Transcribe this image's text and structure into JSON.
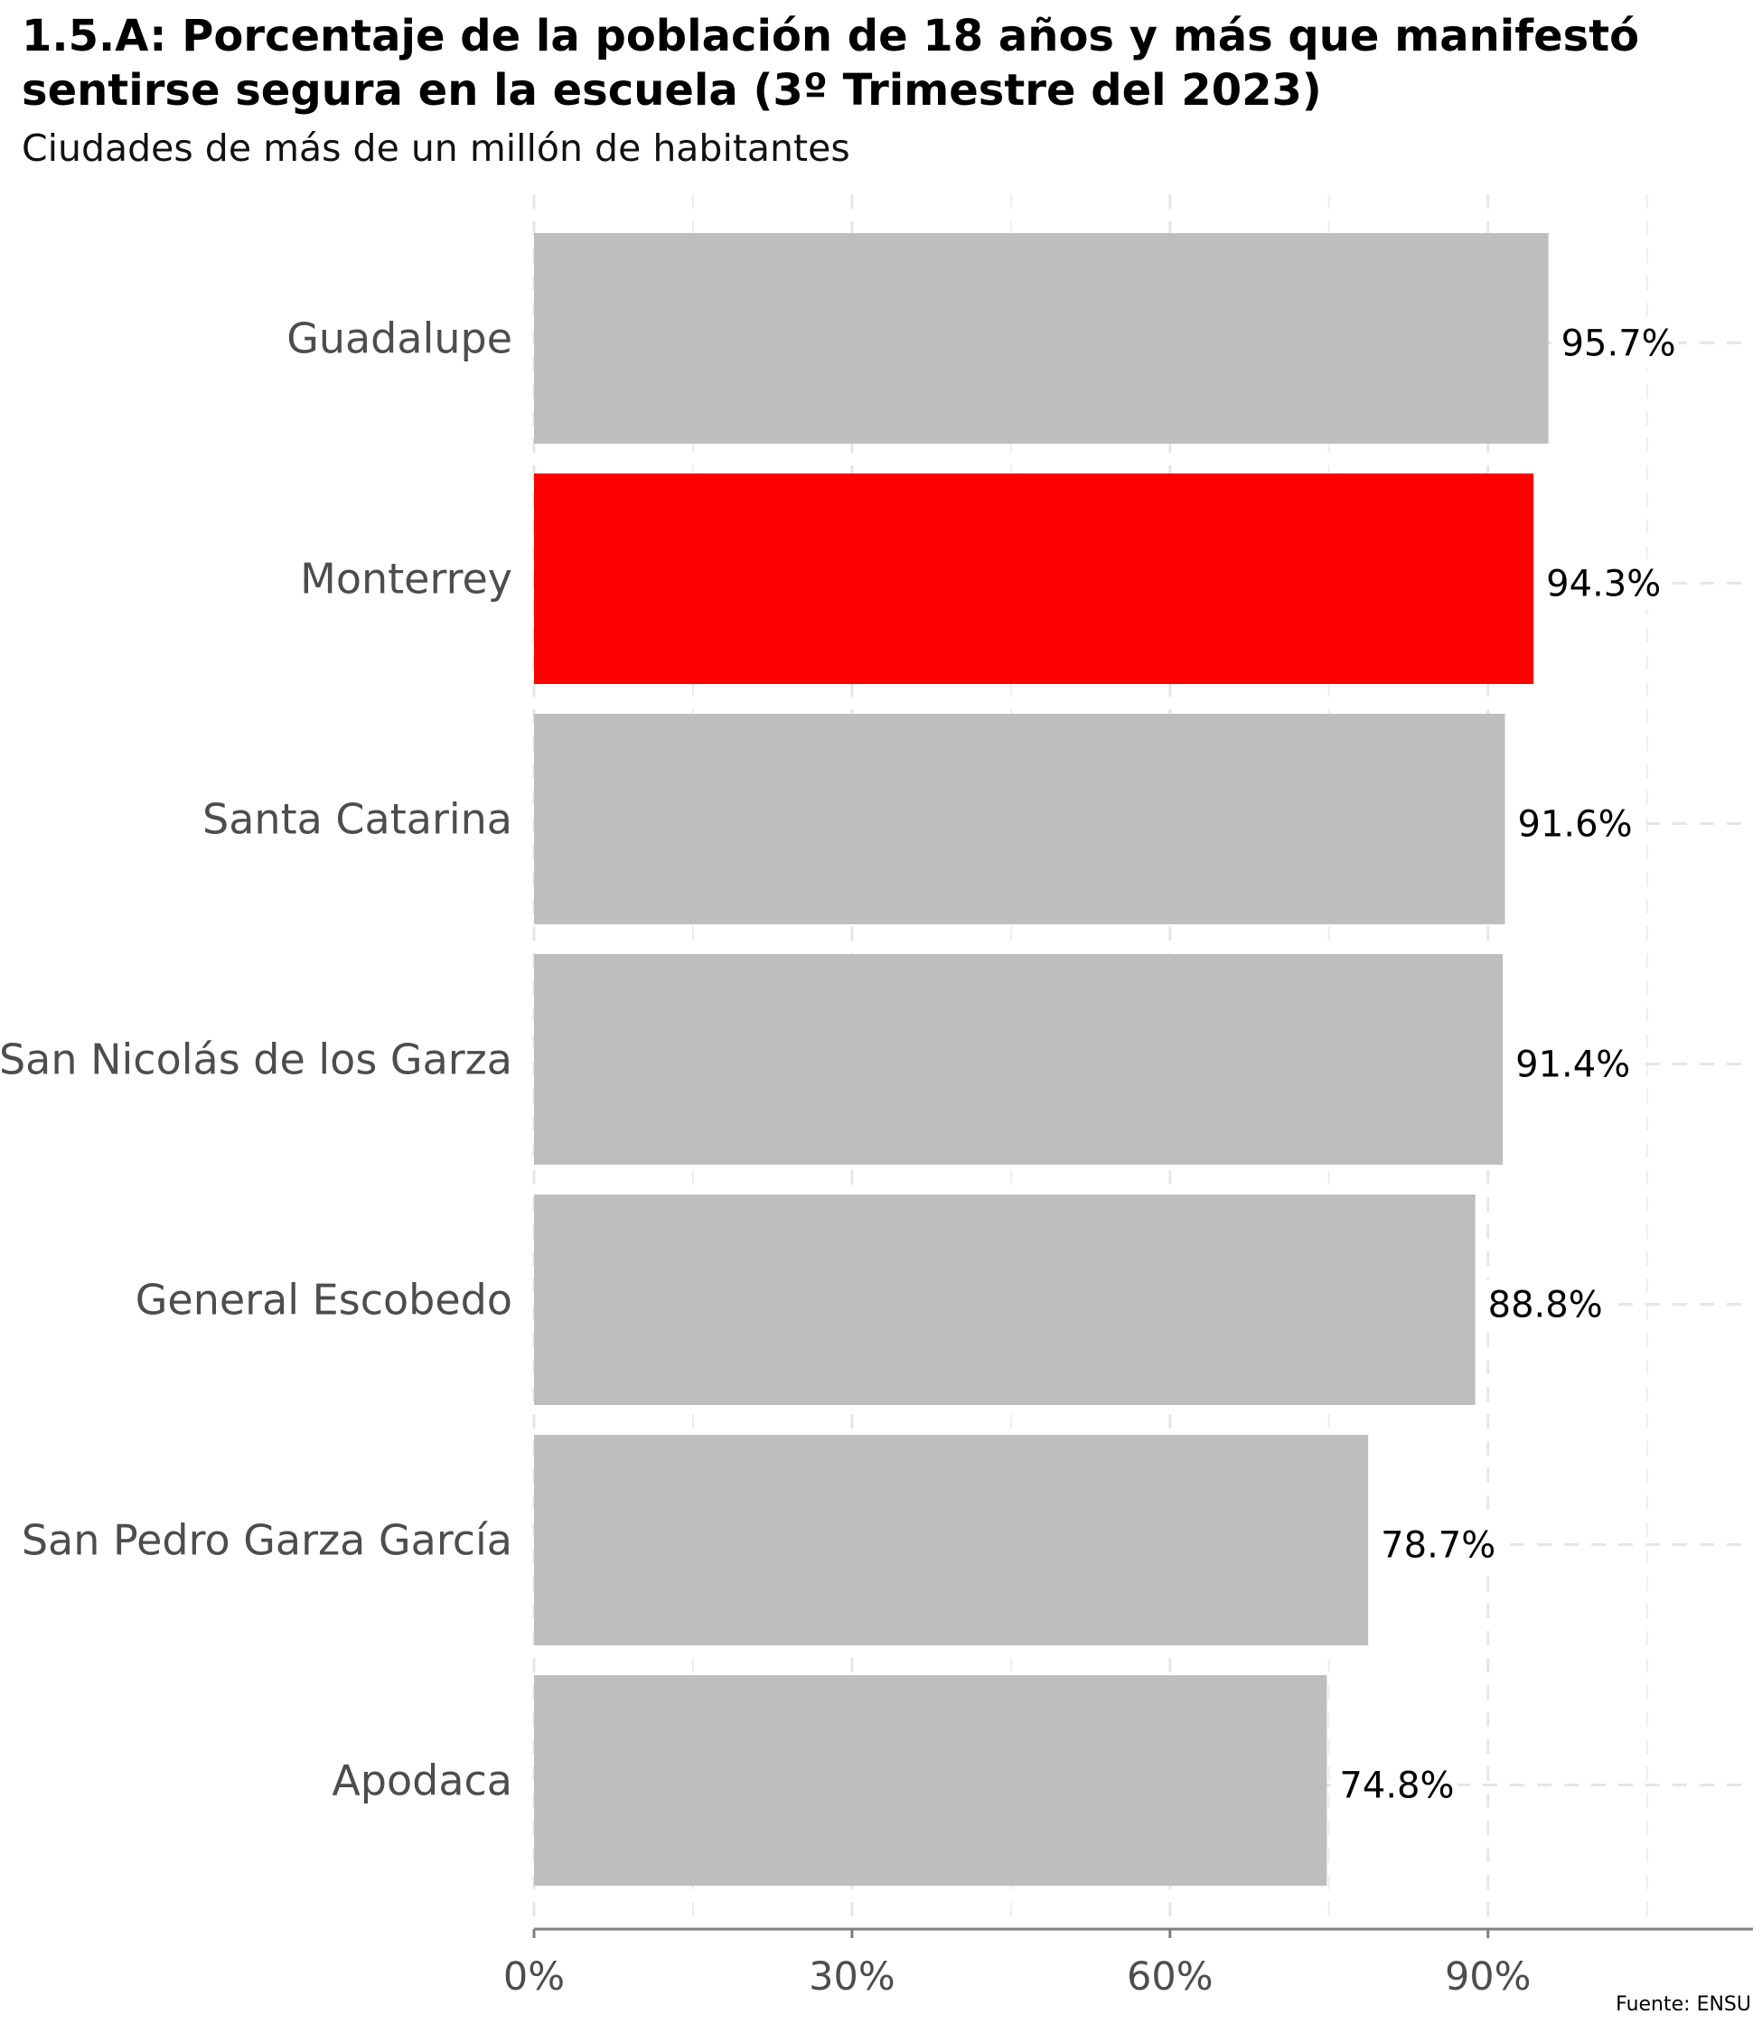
{
  "title": "1.5.A: Porcentaje de la población de 18 años y más que manifestó sentirse segura en la escuela (3º Trimestre del 2023)",
  "subtitle": "Ciudades de más de un millón de habitantes",
  "source": "Fuente: ENSU",
  "colors": {
    "default": "#bebebe",
    "highlight": "#ff0000"
  },
  "chart_data": {
    "type": "bar",
    "orientation": "horizontal",
    "categories": [
      "Guadalupe",
      "Monterrey",
      "Santa Catarina",
      "San Nicolás de los Garza",
      "General Escobedo",
      "San Pedro Garza García",
      "Apodaca"
    ],
    "values": [
      95.7,
      94.3,
      91.6,
      91.4,
      88.8,
      78.7,
      74.8
    ],
    "value_labels": [
      "95.7%",
      "94.3%",
      "91.6%",
      "91.4%",
      "88.8%",
      "78.7%",
      "74.8%"
    ],
    "highlight": "Monterrey",
    "xticks": [
      0,
      30,
      60,
      90
    ],
    "xtick_labels": [
      "0%",
      "30%",
      "60%",
      "90%"
    ],
    "xlim": [
      0,
      115
    ],
    "grid": true
  }
}
